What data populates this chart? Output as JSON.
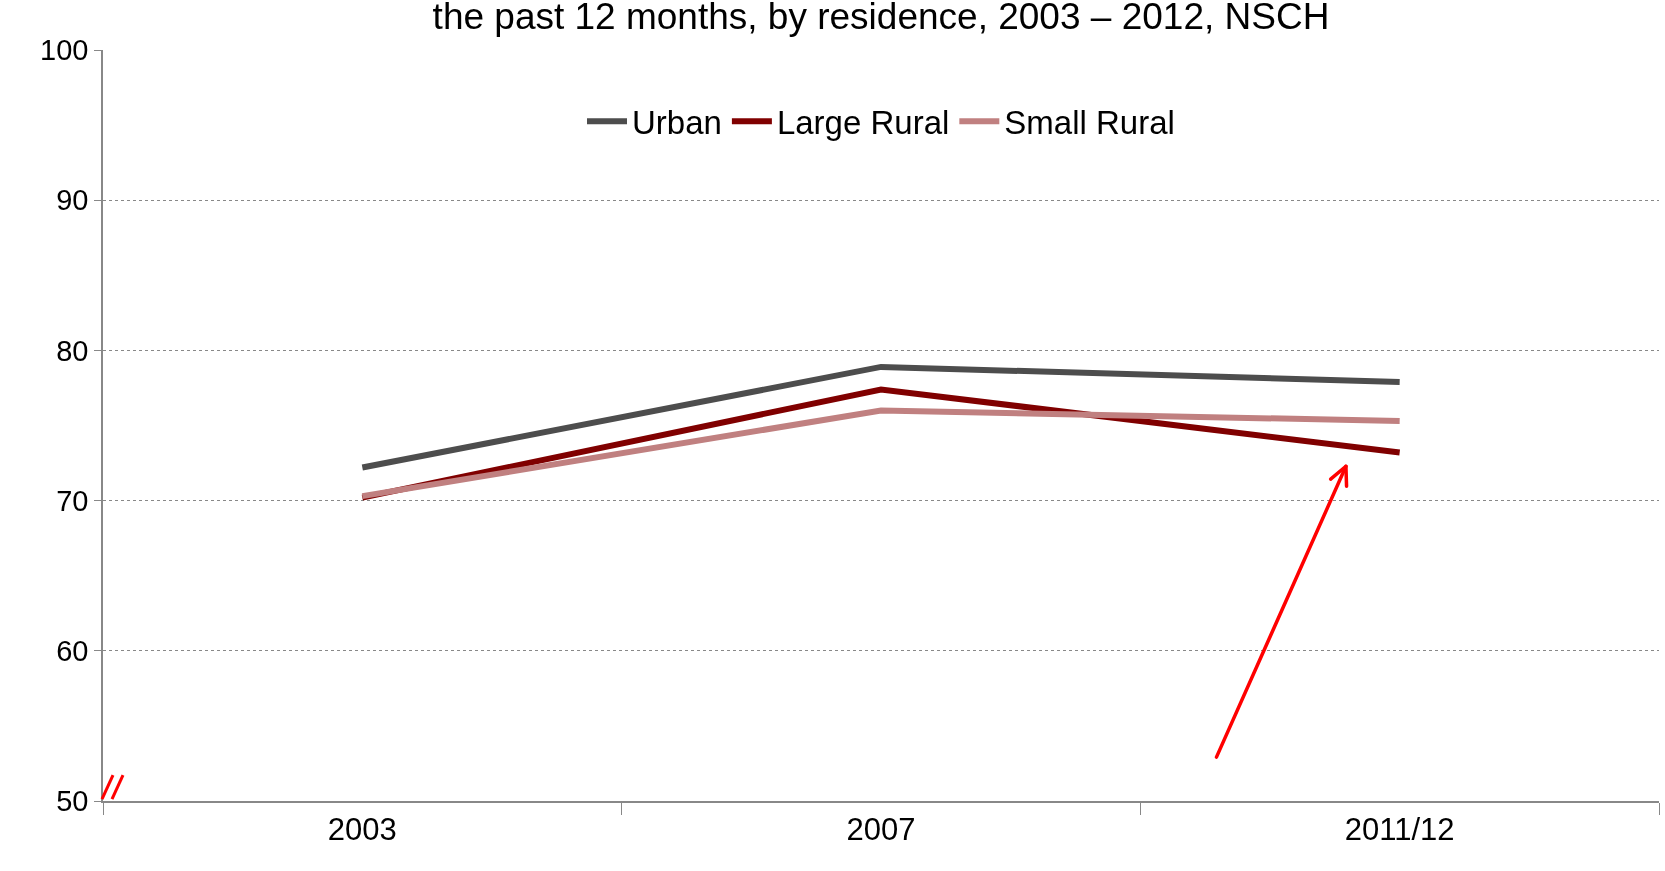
{
  "chart_data": {
    "type": "line",
    "title": "the past 12 months, by residence, 2003 – 2012, NSCH",
    "categories": [
      "2003",
      "2007",
      "2011/12"
    ],
    "series": [
      {
        "name": "Urban",
        "color": "#4d4d4d",
        "values": [
          72.2,
          78.9,
          77.9
        ]
      },
      {
        "name": "Large Rural",
        "color": "#800000",
        "values": [
          70.2,
          77.4,
          73.2
        ]
      },
      {
        "name": "Small Rural",
        "color": "#c08080",
        "values": [
          70.3,
          76.0,
          75.3
        ]
      }
    ],
    "ylim": [
      50,
      100
    ],
    "yticks": [
      50,
      60,
      70,
      80,
      90,
      100
    ],
    "grid": "y",
    "legend": "top",
    "marker": "none",
    "line_style": "solid"
  }
}
